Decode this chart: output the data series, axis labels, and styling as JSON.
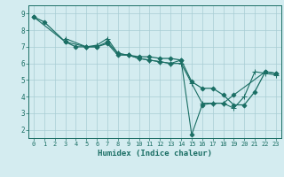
{
  "xlabel": "Humidex (Indice chaleur)",
  "background_color": "#d4ecf0",
  "grid_color": "#a8cdd4",
  "line_color": "#1a6e64",
  "xlim": [
    -0.5,
    23.5
  ],
  "ylim": [
    1.5,
    9.5
  ],
  "xticks": [
    0,
    1,
    2,
    3,
    4,
    5,
    6,
    7,
    8,
    9,
    10,
    11,
    12,
    13,
    14,
    15,
    16,
    17,
    18,
    19,
    20,
    21,
    22,
    23
  ],
  "yticks": [
    2,
    3,
    4,
    5,
    6,
    7,
    8,
    9
  ],
  "series": [
    {
      "x": [
        0,
        1,
        3,
        4,
        5,
        6,
        7,
        8,
        9,
        10,
        11,
        12,
        13,
        14,
        15,
        16,
        17,
        18,
        19,
        20,
        21,
        22,
        23
      ],
      "y": [
        8.8,
        8.5,
        7.3,
        7.0,
        7.0,
        7.0,
        7.2,
        6.5,
        6.5,
        6.4,
        6.4,
        6.3,
        6.3,
        6.2,
        4.9,
        4.5,
        4.5,
        4.1,
        3.5,
        3.5,
        4.3,
        5.5,
        5.4
      ],
      "marker": "D",
      "markersize": 2.5,
      "linewidth": 0.9
    },
    {
      "x": [
        3,
        5,
        6,
        7,
        8,
        9,
        10,
        11,
        12,
        13,
        14,
        15,
        16,
        17,
        18,
        19,
        20,
        21,
        22,
        23
      ],
      "y": [
        7.5,
        7.0,
        7.1,
        7.5,
        6.6,
        6.5,
        6.3,
        6.2,
        6.1,
        6.0,
        6.0,
        4.8,
        3.6,
        3.6,
        3.6,
        3.3,
        4.0,
        5.5,
        5.4,
        5.3
      ],
      "marker": "+",
      "markersize": 4,
      "linewidth": 0.8
    },
    {
      "x": [
        0,
        3,
        5,
        6,
        7,
        8,
        9,
        10,
        11,
        12,
        13,
        14,
        15,
        16,
        17,
        18,
        19,
        22,
        23
      ],
      "y": [
        8.8,
        7.3,
        7.0,
        7.0,
        7.3,
        6.6,
        6.5,
        6.3,
        6.2,
        6.1,
        6.0,
        6.2,
        1.7,
        3.5,
        3.6,
        3.6,
        4.1,
        5.5,
        5.4
      ],
      "marker": "D",
      "markersize": 2.5,
      "linewidth": 0.8
    }
  ]
}
